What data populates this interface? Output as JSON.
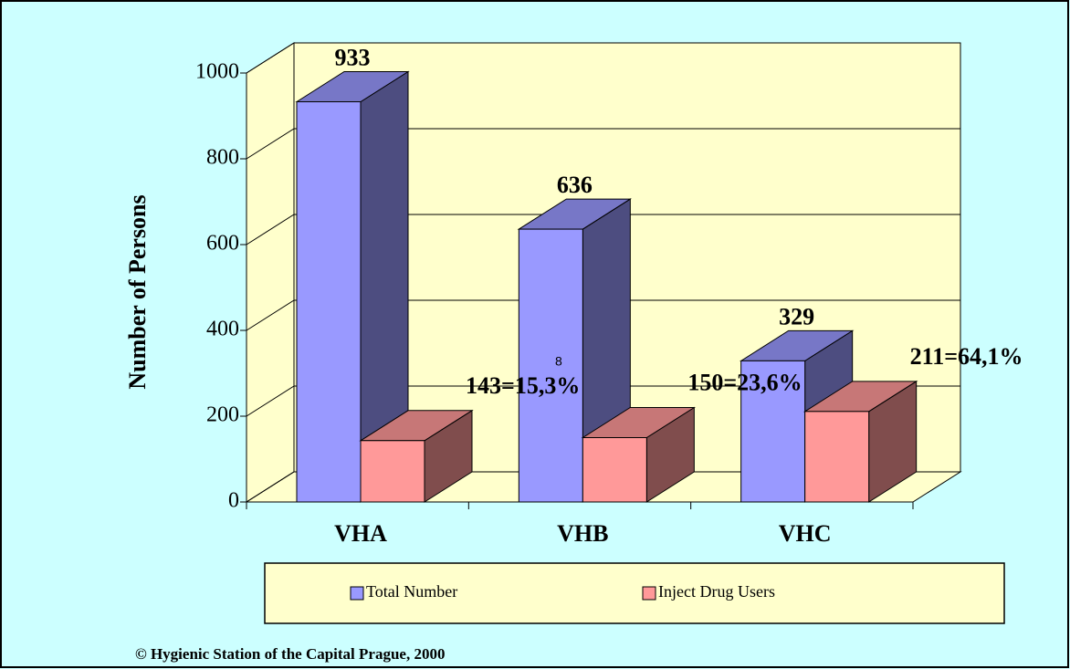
{
  "chart_data": {
    "type": "bar3d",
    "ylabel": "Number of Persons",
    "categories": [
      "VHA",
      "VHB",
      "VHC"
    ],
    "series": [
      {
        "name": "Total Number",
        "color": "#9999ff",
        "values": [
          933,
          636,
          329
        ]
      },
      {
        "name": "Inject Drug Users",
        "color": "#ff9999",
        "values": [
          143,
          150,
          211
        ],
        "value_labels": [
          "143=15,3%",
          "150=23,6%",
          "211=64,1%"
        ]
      }
    ],
    "ylim": [
      0,
      1000
    ],
    "yticks": [
      0,
      200,
      400,
      600,
      800,
      1000
    ],
    "grid": true,
    "annotation": "8",
    "source": "© Hygienic Station of the Capital Prague, 2000"
  }
}
